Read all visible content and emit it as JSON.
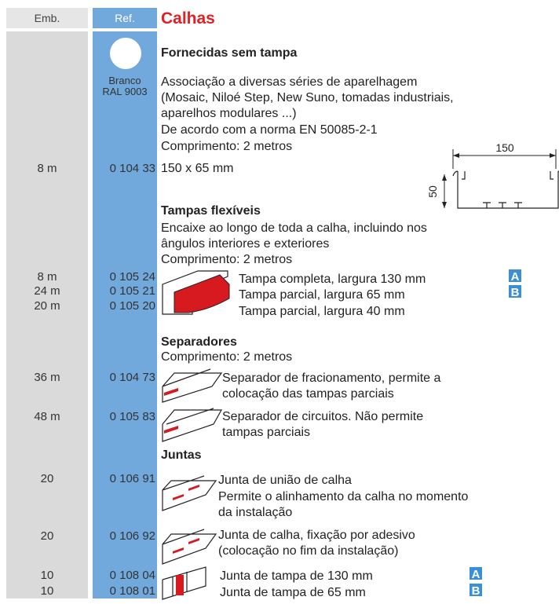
{
  "header": {
    "emb": "Emb.",
    "ref": "Ref.",
    "title": "Calhas"
  },
  "finish": {
    "name": "Branco",
    "code": "RAL 9003"
  },
  "diagram": {
    "width": "150",
    "height": "50"
  },
  "sections": [
    {
      "title": "Fornecidas sem tampa",
      "notes": [
        "Associação a diversas séries de aparelhagem",
        "(Mosaic, Niloé Step, New Suno, tomadas industriais,",
        "aparelhos modulares ...)",
        "De acordo com a norma EN 50085-2-1",
        "Comprimento: 2 metros"
      ],
      "rows": [
        {
          "emb": "8 m",
          "ref": "0 104 33",
          "desc": [
            "150 x 65 mm"
          ]
        }
      ]
    },
    {
      "title": "Tampas flexíveis",
      "notes": [
        "Encaixe ao longo de toda a calha, incluindo nos",
        "ângulos interiores e exteriores",
        "Comprimento: 2 metros"
      ],
      "rows": [
        {
          "emb": "8 m",
          "ref": "0 105 24",
          "desc": [
            "Tampa completa, largura 130 mm"
          ],
          "badge": "A"
        },
        {
          "emb": "24 m",
          "ref": "0 105 21",
          "desc": [
            "Tampa parcial, largura 65 mm"
          ],
          "badge": "B"
        },
        {
          "emb": "20 m",
          "ref": "0 105 20",
          "desc": [
            "Tampa parcial, largura 40 mm"
          ]
        }
      ]
    },
    {
      "title": "Separadores",
      "notes": [
        "Comprimento: 2 metros"
      ],
      "rows": [
        {
          "emb": "36 m",
          "ref": "0 104 73",
          "desc": [
            "Separador de fracionamento, permite a",
            "colocação das tampas parciais"
          ]
        },
        {
          "emb": "48 m",
          "ref": "0 105 83",
          "desc": [
            "Separador de circuitos. Não permite",
            "tampas parciais"
          ]
        }
      ]
    },
    {
      "title": "Juntas",
      "rows": [
        {
          "emb": "20",
          "ref": "0 106 91",
          "desc": [
            "Junta de união de calha",
            "Permite o alinhamento da calha no momento",
            "da instalação"
          ]
        },
        {
          "emb": "20",
          "ref": "0 106 92",
          "desc": [
            "Junta de calha, fixação por adesivo",
            "(colocação no fim da instalação)"
          ]
        },
        {
          "emb": "10",
          "ref": "0 108 04",
          "desc": [
            "Junta de tampa de 130 mm"
          ],
          "badge": "A"
        },
        {
          "emb": "10",
          "ref": "0 108 01",
          "desc": [
            "Junta de tampa de 65 mm"
          ],
          "badge": "B"
        }
      ]
    }
  ]
}
